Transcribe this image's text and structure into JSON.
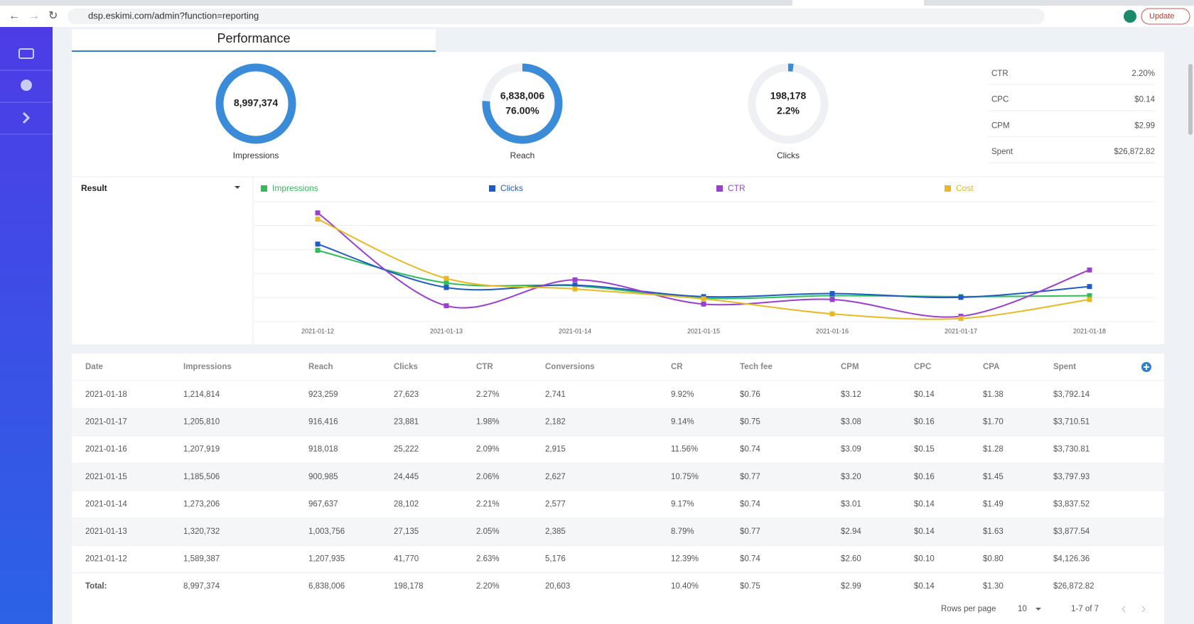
{
  "browser": {
    "url": "dsp.eskimi.com/admin?function=reporting",
    "update_button": "Update"
  },
  "tab": {
    "title": "Performance"
  },
  "donuts": [
    {
      "value_label": "8,997,374",
      "label": "Impressions"
    },
    {
      "value_label": "6,838,006",
      "percent": {
        "value": 76,
        "label": "76.00%"
      },
      "label": "Reach"
    },
    {
      "value_label": "198,178",
      "percent": {
        "value": 2.2,
        "label": "2.2%"
      },
      "label": "Clicks"
    }
  ],
  "stats": [
    [
      "CTR",
      "2.20%"
    ],
    [
      "CPC",
      "$0.14"
    ],
    [
      "CPM",
      "$2.99"
    ],
    [
      "Spent",
      "$26,872.82"
    ]
  ],
  "chart_data": {
    "type": "line",
    "selector": "Result",
    "categories": [
      "2021-01-12",
      "2021-01-13",
      "2021-01-14",
      "2021-01-15",
      "2021-01-16",
      "2021-01-17",
      "2021-01-18"
    ],
    "ylim": [
      0,
      5
    ],
    "grid": true,
    "series": [
      {
        "name": "Impressions",
        "color": "#2ebd59",
        "values": [
          2.97,
          1.61,
          1.49,
          0.98,
          1.08,
          1.04,
          1.08
        ]
      },
      {
        "name": "Clicks",
        "color": "#1f5bc6",
        "values": [
          3.23,
          1.42,
          1.52,
          1.04,
          1.17,
          1.01,
          1.46
        ]
      },
      {
        "name": "CTR",
        "color": "#9a3fd0",
        "values": [
          4.53,
          0.66,
          1.74,
          0.73,
          0.92,
          0.22,
          2.15
        ]
      },
      {
        "name": "Cost",
        "color": "#e8b923",
        "values": [
          4.27,
          1.8,
          1.36,
          0.95,
          0.32,
          0.13,
          0.92
        ]
      }
    ]
  },
  "table": {
    "columns": [
      "Date",
      "Impressions",
      "Reach",
      "Clicks",
      "CTR",
      "Conversions",
      "CR",
      "Tech fee",
      "CPM",
      "CPC",
      "CPA",
      "Spent"
    ],
    "rows": [
      [
        "2021-01-18",
        "1,214,814",
        "923,259",
        "27,623",
        "2.27%",
        "2,741",
        "9.92%",
        "$0.76",
        "$3.12",
        "$0.14",
        "$1.38",
        "$3,792.14"
      ],
      [
        "2021-01-17",
        "1,205,810",
        "916,416",
        "23,881",
        "1.98%",
        "2,182",
        "9.14%",
        "$0.75",
        "$3.08",
        "$0.16",
        "$1.70",
        "$3,710.51"
      ],
      [
        "2021-01-16",
        "1,207,919",
        "918,018",
        "25,222",
        "2.09%",
        "2,915",
        "11.56%",
        "$0.74",
        "$3.09",
        "$0.15",
        "$1.28",
        "$3,730.81"
      ],
      [
        "2021-01-15",
        "1,185,506",
        "900,985",
        "24,445",
        "2.06%",
        "2,627",
        "10.75%",
        "$0.77",
        "$3.20",
        "$0.16",
        "$1.45",
        "$3,797.93"
      ],
      [
        "2021-01-14",
        "1,273,206",
        "967,637",
        "28,102",
        "2.21%",
        "2,577",
        "9.17%",
        "$0.74",
        "$3.01",
        "$0.14",
        "$1.49",
        "$3,837.52"
      ],
      [
        "2021-01-13",
        "1,320,732",
        "1,003,756",
        "27,135",
        "2.05%",
        "2,385",
        "8.79%",
        "$0.77",
        "$2.94",
        "$0.14",
        "$1.63",
        "$3,877.54"
      ],
      [
        "2021-01-12",
        "1,589,387",
        "1,207,935",
        "41,770",
        "2.63%",
        "5,176",
        "12.39%",
        "$0.74",
        "$2.60",
        "$0.10",
        "$0.80",
        "$4,126.36"
      ]
    ],
    "total": [
      "Total:",
      "8,997,374",
      "6,838,006",
      "198,178",
      "2.20%",
      "20,603",
      "10.40%",
      "$0.75",
      "$2.99",
      "$0.14",
      "$1.30",
      "$26,872.82"
    ]
  },
  "pagination": {
    "rows_per_page_label": "Rows per page",
    "rows_per_page": "10",
    "range": "1-7 of 7"
  }
}
